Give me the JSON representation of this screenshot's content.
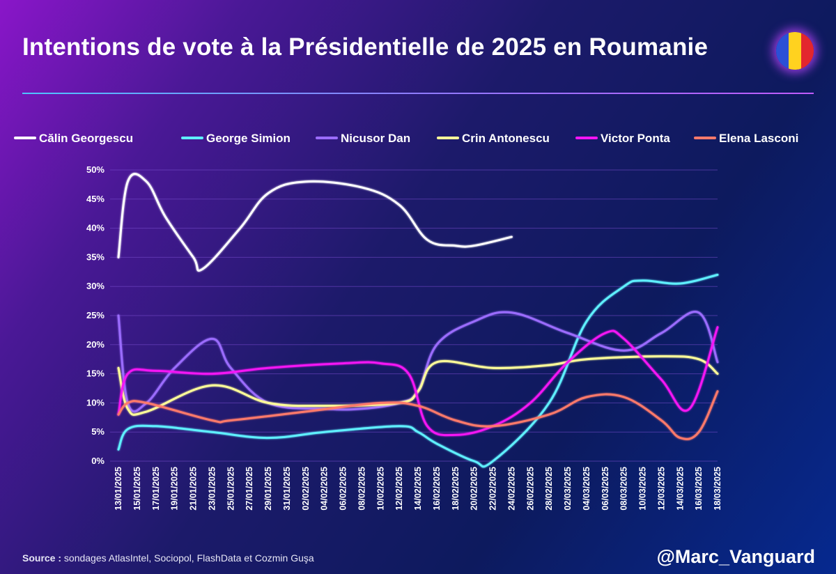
{
  "title": "Intentions de vote à la Présidentielle de 2025 en Roumanie",
  "handle": "@Marc_Vanguard",
  "source": {
    "label": "Source :",
    "text": " sondages AtlasIntel, Sociopol, FlashData et Cozmin Guşa"
  },
  "flag_colors": [
    "#2b50d6",
    "#ffd21f",
    "#e3262e"
  ],
  "chart_data": {
    "type": "line",
    "title": "Intentions de vote à la Présidentielle de 2025 en Roumanie",
    "xlabel": "",
    "ylabel": "",
    "ylim": [
      0,
      50
    ],
    "yticks": [
      "0%",
      "5%",
      "10%",
      "15%",
      "20%",
      "25%",
      "30%",
      "35%",
      "40%",
      "45%",
      "50%"
    ],
    "grid": "horizontal",
    "legend_position": "top",
    "categories": [
      "13/01/2025",
      "15/01/2025",
      "17/01/2025",
      "19/01/2025",
      "21/01/2025",
      "23/01/2025",
      "25/01/2025",
      "27/01/2025",
      "29/01/2025",
      "31/01/2025",
      "02/02/2025",
      "04/02/2025",
      "06/02/2025",
      "08/02/2025",
      "10/02/2025",
      "12/02/2025",
      "14/02/2025",
      "16/02/2025",
      "18/02/2025",
      "20/02/2025",
      "22/02/2025",
      "24/02/2025",
      "26/02/2025",
      "28/02/2025",
      "02/03/2025",
      "04/03/2025",
      "06/03/2025",
      "08/03/2025",
      "10/03/2025",
      "12/03/2025",
      "14/03/2025",
      "16/03/2025",
      "18/03/2025"
    ],
    "series": [
      {
        "name": "Călin Georgescu",
        "color": "#ffffff",
        "points": [
          [
            "13/01/2025",
            35
          ],
          [
            "14/01/2025",
            48
          ],
          [
            "16/01/2025",
            48
          ],
          [
            "18/01/2025",
            42
          ],
          [
            "21/01/2025",
            35
          ],
          [
            "22/01/2025",
            33
          ],
          [
            "26/01/2025",
            40
          ],
          [
            "29/01/2025",
            46
          ],
          [
            "02/02/2025",
            48
          ],
          [
            "08/02/2025",
            47
          ],
          [
            "12/02/2025",
            44
          ],
          [
            "15/02/2025",
            38
          ],
          [
            "18/02/2025",
            37
          ],
          [
            "20/02/2025",
            37
          ],
          [
            "24/02/2025",
            38.5
          ]
        ]
      },
      {
        "name": "George Simion",
        "color": "#5ff0ff",
        "points": [
          [
            "13/01/2025",
            2
          ],
          [
            "14/01/2025",
            5.5
          ],
          [
            "17/01/2025",
            6
          ],
          [
            "23/01/2025",
            5
          ],
          [
            "29/01/2025",
            4
          ],
          [
            "04/02/2025",
            5
          ],
          [
            "12/02/2025",
            6
          ],
          [
            "14/02/2025",
            5
          ],
          [
            "16/02/2025",
            3
          ],
          [
            "20/02/2025",
            0
          ],
          [
            "22/02/2025",
            0
          ],
          [
            "28/02/2025",
            10
          ],
          [
            "04/03/2025",
            24
          ],
          [
            "08/03/2025",
            30
          ],
          [
            "10/03/2025",
            31
          ],
          [
            "14/03/2025",
            30.5
          ],
          [
            "18/03/2025",
            32
          ]
        ]
      },
      {
        "name": "Nicusor Dan",
        "color": "#9b6cff",
        "points": [
          [
            "13/01/2025",
            25
          ],
          [
            "14/01/2025",
            10
          ],
          [
            "16/01/2025",
            10
          ],
          [
            "19/01/2025",
            16
          ],
          [
            "23/01/2025",
            21
          ],
          [
            "25/01/2025",
            16
          ],
          [
            "29/01/2025",
            10
          ],
          [
            "04/02/2025",
            9
          ],
          [
            "08/02/2025",
            9
          ],
          [
            "12/02/2025",
            10
          ],
          [
            "14/02/2025",
            12
          ],
          [
            "16/02/2025",
            20
          ],
          [
            "20/02/2025",
            24
          ],
          [
            "24/02/2025",
            25.5
          ],
          [
            "02/03/2025",
            22
          ],
          [
            "08/03/2025",
            19
          ],
          [
            "12/03/2025",
            22
          ],
          [
            "16/03/2025",
            25.5
          ],
          [
            "18/03/2025",
            17
          ]
        ]
      },
      {
        "name": "Crin Antonescu",
        "color": "#ffff99",
        "points": [
          [
            "13/01/2025",
            16
          ],
          [
            "14/01/2025",
            9
          ],
          [
            "16/01/2025",
            8.5
          ],
          [
            "23/01/2025",
            13
          ],
          [
            "29/01/2025",
            10
          ],
          [
            "04/02/2025",
            9.5
          ],
          [
            "12/02/2025",
            10
          ],
          [
            "14/02/2025",
            12
          ],
          [
            "16/02/2025",
            17
          ],
          [
            "22/02/2025",
            16
          ],
          [
            "28/02/2025",
            16.5
          ],
          [
            "04/03/2025",
            17.5
          ],
          [
            "12/03/2025",
            18
          ],
          [
            "16/03/2025",
            17.5
          ],
          [
            "18/03/2025",
            15
          ]
        ]
      },
      {
        "name": "Victor Ponta",
        "color": "#f414f4",
        "points": [
          [
            "13/01/2025",
            8
          ],
          [
            "14/01/2025",
            15
          ],
          [
            "17/01/2025",
            15.5
          ],
          [
            "23/01/2025",
            15
          ],
          [
            "29/01/2025",
            16
          ],
          [
            "06/02/2025",
            16.8
          ],
          [
            "10/02/2025",
            16.8
          ],
          [
            "13/02/2025",
            15
          ],
          [
            "15/02/2025",
            6
          ],
          [
            "18/02/2025",
            4.5
          ],
          [
            "22/02/2025",
            6
          ],
          [
            "26/02/2025",
            10
          ],
          [
            "02/03/2025",
            17
          ],
          [
            "06/03/2025",
            22
          ],
          [
            "08/03/2025",
            21
          ],
          [
            "12/03/2025",
            14
          ],
          [
            "15/03/2025",
            9
          ],
          [
            "18/03/2025",
            23
          ]
        ]
      },
      {
        "name": "Elena Lasconi",
        "color": "#ff7a6b",
        "points": [
          [
            "13/01/2025",
            8
          ],
          [
            "14/01/2025",
            10
          ],
          [
            "16/01/2025",
            10
          ],
          [
            "23/01/2025",
            7
          ],
          [
            "25/01/2025",
            7
          ],
          [
            "02/02/2025",
            8.5
          ],
          [
            "10/02/2025",
            10
          ],
          [
            "14/02/2025",
            9.5
          ],
          [
            "18/02/2025",
            7
          ],
          [
            "22/02/2025",
            6
          ],
          [
            "28/02/2025",
            8
          ],
          [
            "04/03/2025",
            11
          ],
          [
            "08/03/2025",
            11
          ],
          [
            "12/03/2025",
            7
          ],
          [
            "14/03/2025",
            4
          ],
          [
            "16/03/2025",
            5
          ],
          [
            "18/03/2025",
            12
          ]
        ]
      }
    ]
  }
}
